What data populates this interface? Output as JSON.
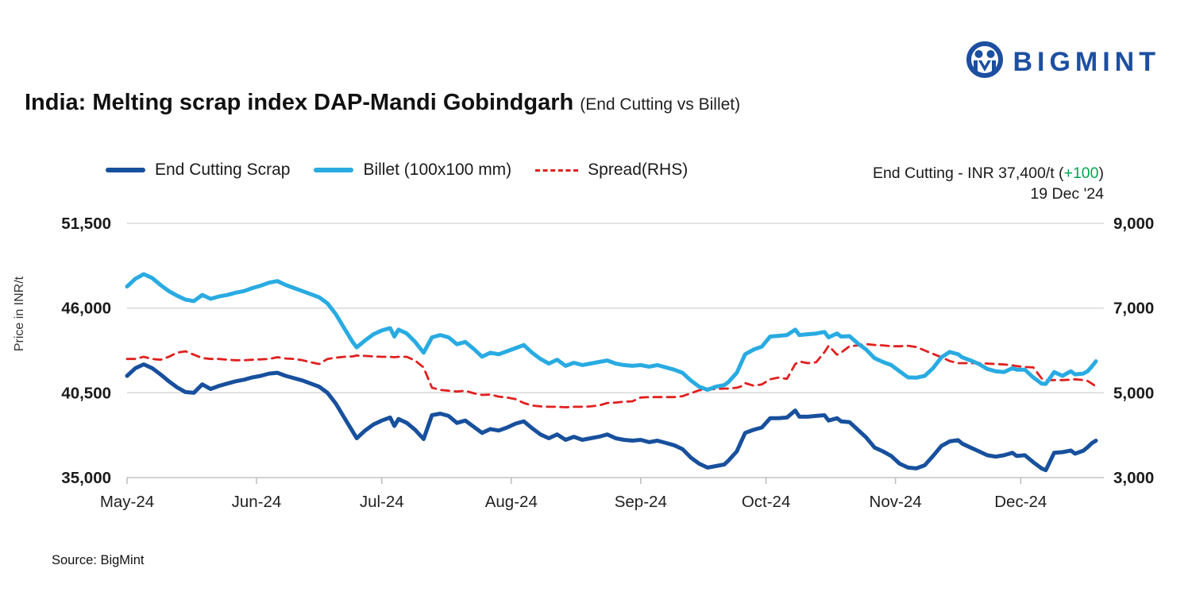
{
  "logo": {
    "text": "BIGMINT"
  },
  "title": {
    "main": "India: Melting scrap index DAP-Mandi Gobindgarh",
    "sub": "(End Cutting vs Billet)"
  },
  "annotation": {
    "prefix": "End Cutting - INR 37,400/t (",
    "change": "+100",
    "suffix": ")",
    "date": "19 Dec '24"
  },
  "source": "Source: BigMint",
  "colors": {
    "scrap": "#17509d",
    "billet": "#29abe2",
    "spread": "#e0201f",
    "green": "#00a651",
    "logo_navy": "#1d4fa1",
    "grid": "#d9d9d9"
  },
  "chart_data": {
    "type": "line",
    "title": "India: Melting scrap index DAP-Mandi Gobindgarh",
    "subtitle": "(End Cutting vs Billet)",
    "legend_position": "top",
    "grid": "horizontal",
    "x_tick_labels": [
      "May-24",
      "Jun-24",
      "Jul-24",
      "Aug-24",
      "Sep-24",
      "Oct-24",
      "Nov-24",
      "Dec-24"
    ],
    "x_tick_days": [
      0,
      31,
      61,
      92,
      123,
      153,
      184,
      214
    ],
    "left_axis": {
      "label": "Price in INR/t",
      "ticks": [
        35000,
        40500,
        46000,
        51500
      ],
      "range": [
        35000,
        51500
      ]
    },
    "right_axis": {
      "ticks": [
        3000,
        5000,
        7000,
        9000
      ],
      "range": [
        3000,
        9000
      ]
    },
    "x_days": [
      0,
      2,
      4,
      6,
      8,
      10,
      12,
      14,
      16,
      18,
      20,
      22,
      24,
      26,
      28,
      30,
      32,
      34,
      36,
      38,
      40,
      42,
      44,
      46,
      48,
      50,
      52,
      54,
      55,
      57,
      59,
      61,
      63,
      64,
      65,
      67,
      69,
      71,
      73,
      75,
      77,
      79,
      81,
      83,
      85,
      87,
      89,
      91,
      93,
      95,
      97,
      99,
      101,
      103,
      105,
      107,
      109,
      111,
      113,
      115,
      117,
      119,
      121,
      123,
      125,
      127,
      129,
      131,
      133,
      135,
      137,
      139,
      141,
      143,
      144,
      146,
      147,
      148,
      150,
      152,
      154,
      156,
      158,
      160,
      161,
      163,
      165,
      167,
      168,
      170,
      171,
      173,
      175,
      177,
      179,
      181,
      183,
      185,
      187,
      189,
      191,
      193,
      195,
      197,
      199,
      200,
      202,
      204,
      206,
      208,
      210,
      212,
      213,
      215,
      217,
      219,
      220,
      222,
      224,
      226,
      227,
      229,
      230,
      231,
      232
    ],
    "series": [
      {
        "name": "End Cutting Scrap",
        "axis": "left",
        "color": "#17509d",
        "dash": false,
        "values": [
          41600,
          42100,
          42350,
          42100,
          41700,
          41250,
          40850,
          40550,
          40500,
          41050,
          40750,
          40950,
          41100,
          41250,
          41350,
          41500,
          41600,
          41750,
          41800,
          41600,
          41450,
          41300,
          41100,
          40900,
          40500,
          39800,
          38900,
          38000,
          37550,
          38050,
          38450,
          38700,
          38900,
          38350,
          38800,
          38550,
          38100,
          37500,
          39050,
          39150,
          39000,
          38550,
          38700,
          38300,
          37900,
          38150,
          38050,
          38250,
          38500,
          38650,
          38200,
          37800,
          37550,
          37800,
          37450,
          37650,
          37450,
          37550,
          37650,
          37800,
          37550,
          37450,
          37400,
          37450,
          37300,
          37400,
          37250,
          37100,
          36850,
          36300,
          35900,
          35650,
          35750,
          35850,
          36100,
          36700,
          37300,
          37900,
          38100,
          38250,
          38850,
          38850,
          38900,
          39350,
          38950,
          38950,
          39000,
          39050,
          38700,
          38850,
          38650,
          38600,
          38100,
          37600,
          36950,
          36700,
          36400,
          35900,
          35650,
          35600,
          35800,
          36400,
          37050,
          37350,
          37430,
          37200,
          36950,
          36700,
          36450,
          36360,
          36450,
          36610,
          36400,
          36450,
          36000,
          35600,
          35480,
          36610,
          36650,
          36760,
          36550,
          36750,
          36970,
          37230,
          37400
        ]
      },
      {
        "name": "Billet (100x100 mm)",
        "axis": "left",
        "color": "#29abe2",
        "dash": false,
        "values": [
          47400,
          47900,
          48200,
          47950,
          47500,
          47100,
          46800,
          46550,
          46450,
          46850,
          46600,
          46750,
          46850,
          47000,
          47100,
          47300,
          47450,
          47650,
          47750,
          47500,
          47300,
          47100,
          46900,
          46700,
          46300,
          45600,
          44700,
          43800,
          43450,
          43900,
          44300,
          44550,
          44700,
          44150,
          44600,
          44350,
          43800,
          43100,
          44100,
          44250,
          44100,
          43650,
          43800,
          43350,
          42850,
          43100,
          43000,
          43200,
          43400,
          43600,
          43100,
          42700,
          42400,
          42650,
          42250,
          42450,
          42300,
          42400,
          42500,
          42600,
          42400,
          42300,
          42250,
          42300,
          42200,
          42300,
          42150,
          42000,
          41800,
          41300,
          40900,
          40700,
          40900,
          41000,
          41200,
          41800,
          42400,
          43000,
          43300,
          43500,
          44150,
          44200,
          44250,
          44600,
          44250,
          44300,
          44350,
          44450,
          44100,
          44350,
          44150,
          44180,
          43700,
          43300,
          42750,
          42500,
          42300,
          41900,
          41500,
          41480,
          41600,
          42100,
          42800,
          43150,
          43000,
          42800,
          42600,
          42370,
          42050,
          41900,
          41850,
          42100,
          42000,
          42000,
          41500,
          41100,
          41080,
          41850,
          41600,
          41900,
          41700,
          41750,
          41900,
          42200,
          42550
        ]
      },
      {
        "name": "Spread(RHS)",
        "axis": "right",
        "color": "#e0201f",
        "dash": true,
        "values": [
          5800,
          5800,
          5850,
          5800,
          5780,
          5850,
          5950,
          5980,
          5900,
          5820,
          5800,
          5800,
          5780,
          5770,
          5770,
          5780,
          5790,
          5800,
          5840,
          5810,
          5800,
          5770,
          5720,
          5680,
          5800,
          5830,
          5850,
          5860,
          5880,
          5870,
          5860,
          5850,
          5850,
          5840,
          5850,
          5850,
          5760,
          5600,
          5120,
          5070,
          5050,
          5030,
          5050,
          4990,
          4950,
          4960,
          4910,
          4890,
          4850,
          4760,
          4700,
          4680,
          4670,
          4670,
          4660,
          4670,
          4670,
          4680,
          4700,
          4760,
          4770,
          4790,
          4800,
          4890,
          4900,
          4900,
          4900,
          4900,
          4920,
          4990,
          5060,
          5080,
          5090,
          5100,
          5100,
          5120,
          5150,
          5230,
          5170,
          5200,
          5320,
          5360,
          5330,
          5680,
          5740,
          5700,
          5720,
          5960,
          6110,
          5900,
          5950,
          6100,
          6120,
          6150,
          6130,
          6120,
          6100,
          6100,
          6110,
          6080,
          6000,
          5920,
          5840,
          5750,
          5700,
          5700,
          5700,
          5700,
          5690,
          5680,
          5670,
          5650,
          5630,
          5610,
          5600,
          5340,
          5300,
          5300,
          5300,
          5310,
          5320,
          5300,
          5280,
          5220,
          5150
        ]
      }
    ]
  }
}
